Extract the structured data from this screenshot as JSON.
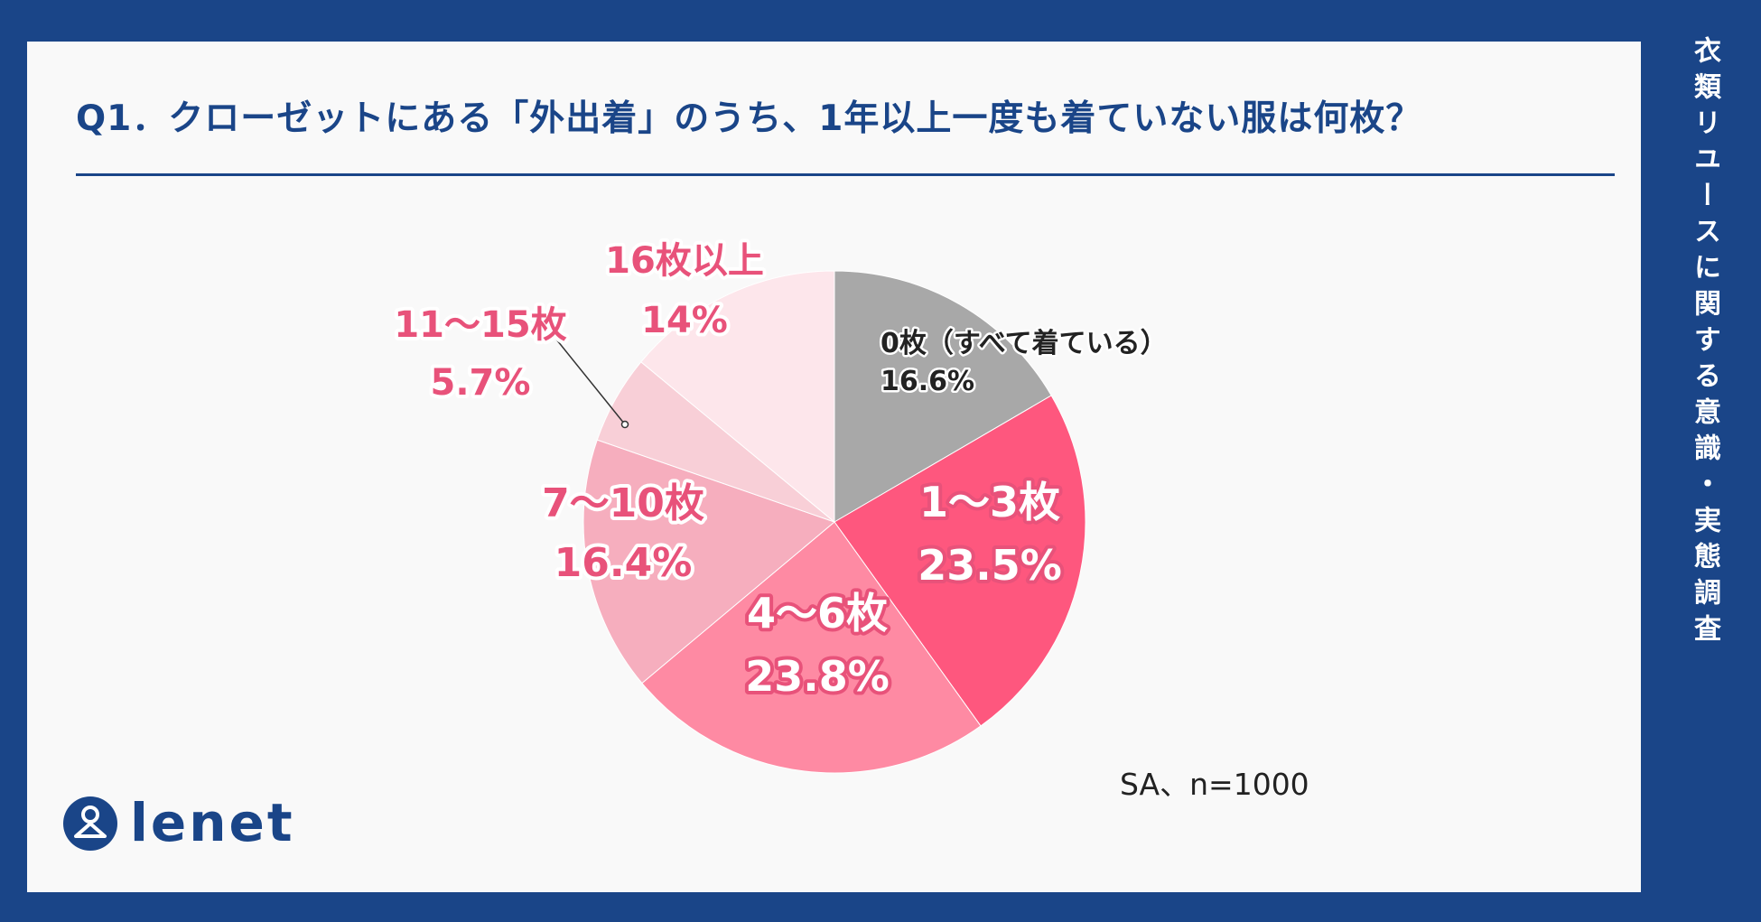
{
  "header": {
    "title": "Q1．クローゼットにある「外出着」のうち、1年以上一度も着ていない服は何枚？",
    "side_title": "衣類リユースに関する意識・実態調査"
  },
  "footer": {
    "sample_note": "SA、n=1000",
    "brand": "lenet"
  },
  "colors": {
    "navy": "#1a4588",
    "accent": "#e8527a"
  },
  "chart_data": {
    "type": "pie",
    "title": "Q1．クローゼットにある「外出着」のうち、1年以上一度も着ていない服は何枚？",
    "start": "12 o'clock, clockwise",
    "slices": [
      {
        "name": "0枚（すべて着ている）",
        "value": 16.6,
        "label_value": "16.6%",
        "color": "#a8a8a8",
        "label_color": "#222222"
      },
      {
        "name": "1～3枚",
        "value": 23.5,
        "label_value": "23.5%",
        "color": "#fe577e",
        "label_color": "#ffffff"
      },
      {
        "name": "4～6枚",
        "value": 23.8,
        "label_value": "23.8%",
        "color": "#fe8aa3",
        "label_color": "#ffffff"
      },
      {
        "name": "7～10枚",
        "value": 16.4,
        "label_value": "16.4%",
        "color": "#f6aebe",
        "label_color": "#e8527a"
      },
      {
        "name": "11～15枚",
        "value": 5.7,
        "label_value": "5.7%",
        "color": "#f8cfd7",
        "label_color": "#e8527a"
      },
      {
        "name": "16枚以上",
        "value": 14,
        "label_value": "14%",
        "color": "#fde6eb",
        "label_color": "#e8527a"
      }
    ]
  }
}
